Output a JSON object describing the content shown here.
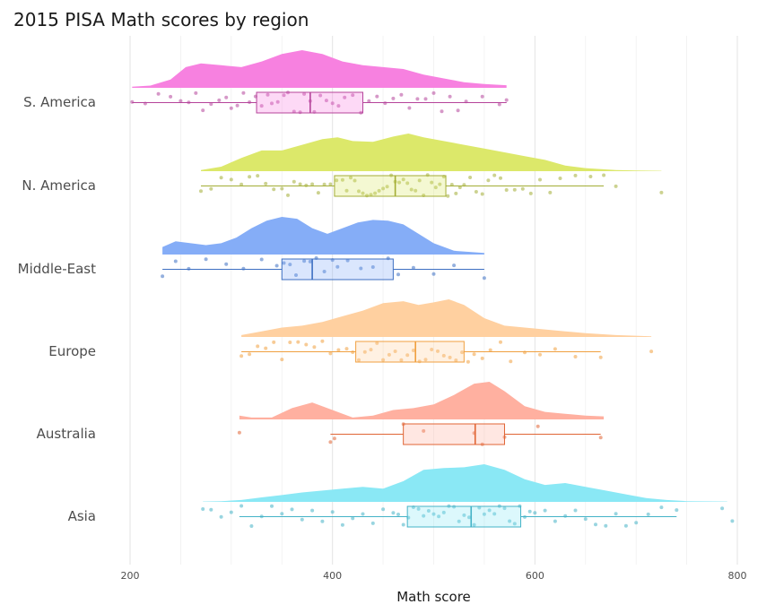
{
  "chart_data": {
    "type": "raincloud",
    "title": "2015 PISA Math scores by region",
    "xlabel": "Math score",
    "ylabel": "",
    "xlim": [
      200,
      800
    ],
    "x_ticks": [
      200,
      400,
      600,
      800
    ],
    "x_tick_labels": [
      "200",
      "400",
      "600",
      "800"
    ],
    "grid": true,
    "legend": "none",
    "categories": [
      "S. America",
      "N. America",
      "Middle-East",
      "Europe",
      "Australia",
      "Asia"
    ],
    "series": [
      {
        "category": "S. America",
        "color": "#f781e0",
        "dark_color": "#b5449a",
        "box": {
          "min": 202,
          "q1": 325,
          "median": 378,
          "q3": 430,
          "max": 572
        },
        "density": [
          [
            202,
            0.03
          ],
          [
            220,
            0.06
          ],
          [
            240,
            0.22
          ],
          [
            255,
            0.55
          ],
          [
            270,
            0.65
          ],
          [
            290,
            0.6
          ],
          [
            310,
            0.55
          ],
          [
            330,
            0.7
          ],
          [
            350,
            0.9
          ],
          [
            370,
            1.0
          ],
          [
            390,
            0.9
          ],
          [
            410,
            0.7
          ],
          [
            430,
            0.6
          ],
          [
            450,
            0.55
          ],
          [
            470,
            0.5
          ],
          [
            490,
            0.35
          ],
          [
            510,
            0.25
          ],
          [
            530,
            0.15
          ],
          [
            550,
            0.1
          ],
          [
            572,
            0.07
          ]
        ],
        "points": [
          202,
          215,
          228,
          240,
          250,
          258,
          265,
          272,
          280,
          288,
          295,
          300,
          306,
          312,
          318,
          324,
          330,
          336,
          340,
          346,
          352,
          356,
          362,
          368,
          372,
          378,
          382,
          388,
          394,
          400,
          406,
          412,
          420,
          428,
          436,
          444,
          452,
          460,
          468,
          476,
          484,
          492,
          500,
          508,
          516,
          524,
          532,
          548,
          565,
          572
        ]
      },
      {
        "category": "N. America",
        "color": "#dce86a",
        "dark_color": "#a3ad35",
        "box": {
          "min": 270,
          "q1": 402,
          "median": 462,
          "q3": 512,
          "max": 668
        },
        "density": [
          [
            270,
            0.03
          ],
          [
            290,
            0.12
          ],
          [
            310,
            0.35
          ],
          [
            330,
            0.55
          ],
          [
            350,
            0.55
          ],
          [
            370,
            0.7
          ],
          [
            390,
            0.85
          ],
          [
            405,
            0.9
          ],
          [
            420,
            0.8
          ],
          [
            440,
            0.78
          ],
          [
            460,
            0.92
          ],
          [
            475,
            1.0
          ],
          [
            490,
            0.9
          ],
          [
            510,
            0.8
          ],
          [
            530,
            0.7
          ],
          [
            550,
            0.6
          ],
          [
            570,
            0.5
          ],
          [
            590,
            0.4
          ],
          [
            610,
            0.3
          ],
          [
            630,
            0.15
          ],
          [
            650,
            0.08
          ],
          [
            680,
            0.03
          ],
          [
            700,
            0.02
          ],
          [
            725,
            0.01
          ]
        ],
        "points": [
          270,
          280,
          290,
          300,
          310,
          318,
          326,
          334,
          342,
          350,
          356,
          362,
          368,
          374,
          380,
          386,
          392,
          398,
          404,
          410,
          414,
          418,
          422,
          426,
          430,
          434,
          438,
          442,
          446,
          450,
          454,
          458,
          462,
          466,
          470,
          474,
          478,
          482,
          486,
          490,
          494,
          498,
          502,
          506,
          510,
          514,
          518,
          522,
          526,
          530,
          536,
          542,
          548,
          554,
          560,
          566,
          572,
          580,
          588,
          596,
          605,
          615,
          625,
          640,
          655,
          668,
          680,
          725
        ]
      },
      {
        "category": "Middle-East",
        "color": "#85adf7",
        "dark_color": "#3d6fc2",
        "box": {
          "min": 232,
          "q1": 350,
          "median": 380,
          "q3": 460,
          "max": 550
        },
        "density": [
          [
            232,
            0.2
          ],
          [
            245,
            0.35
          ],
          [
            260,
            0.3
          ],
          [
            275,
            0.25
          ],
          [
            290,
            0.3
          ],
          [
            305,
            0.45
          ],
          [
            320,
            0.7
          ],
          [
            335,
            0.9
          ],
          [
            350,
            1.0
          ],
          [
            365,
            0.95
          ],
          [
            380,
            0.7
          ],
          [
            395,
            0.55
          ],
          [
            410,
            0.7
          ],
          [
            425,
            0.85
          ],
          [
            440,
            0.92
          ],
          [
            455,
            0.9
          ],
          [
            470,
            0.8
          ],
          [
            485,
            0.55
          ],
          [
            500,
            0.3
          ],
          [
            520,
            0.1
          ],
          [
            550,
            0.04
          ]
        ],
        "points": [
          232,
          245,
          258,
          275,
          295,
          312,
          330,
          345,
          352,
          358,
          364,
          372,
          378,
          384,
          392,
          400,
          405,
          415,
          428,
          440,
          455,
          465,
          480,
          500,
          520,
          550
        ]
      },
      {
        "category": "Europe",
        "color": "#ffd0a0",
        "dark_color": "#f0a040",
        "box": {
          "min": 310,
          "q1": 423,
          "median": 482,
          "q3": 530,
          "max": 665
        },
        "density": [
          [
            310,
            0.05
          ],
          [
            330,
            0.15
          ],
          [
            350,
            0.25
          ],
          [
            370,
            0.3
          ],
          [
            390,
            0.4
          ],
          [
            410,
            0.55
          ],
          [
            430,
            0.7
          ],
          [
            450,
            0.9
          ],
          [
            470,
            0.95
          ],
          [
            485,
            0.85
          ],
          [
            500,
            0.92
          ],
          [
            515,
            1.0
          ],
          [
            530,
            0.85
          ],
          [
            550,
            0.5
          ],
          [
            570,
            0.3
          ],
          [
            590,
            0.25
          ],
          [
            610,
            0.2
          ],
          [
            630,
            0.15
          ],
          [
            650,
            0.1
          ],
          [
            680,
            0.05
          ],
          [
            715,
            0.02
          ]
        ],
        "points": [
          310,
          318,
          326,
          334,
          342,
          350,
          358,
          366,
          374,
          382,
          390,
          398,
          406,
          414,
          420,
          426,
          432,
          438,
          444,
          450,
          456,
          462,
          468,
          474,
          480,
          486,
          492,
          498,
          504,
          510,
          516,
          522,
          528,
          534,
          540,
          548,
          556,
          566,
          576,
          590,
          605,
          620,
          640,
          665,
          715
        ]
      },
      {
        "category": "Australia",
        "color": "#ffb0a0",
        "dark_color": "#e06535",
        "box": {
          "min": 398,
          "q1": 470,
          "median": 541,
          "q3": 570,
          "max": 665
        },
        "density": [
          [
            308,
            0.1
          ],
          [
            320,
            0.05
          ],
          [
            340,
            0.05
          ],
          [
            360,
            0.3
          ],
          [
            380,
            0.45
          ],
          [
            400,
            0.25
          ],
          [
            420,
            0.05
          ],
          [
            440,
            0.1
          ],
          [
            460,
            0.25
          ],
          [
            480,
            0.3
          ],
          [
            500,
            0.4
          ],
          [
            520,
            0.65
          ],
          [
            540,
            0.95
          ],
          [
            555,
            1.0
          ],
          [
            570,
            0.75
          ],
          [
            590,
            0.35
          ],
          [
            610,
            0.2
          ],
          [
            630,
            0.15
          ],
          [
            650,
            0.1
          ],
          [
            668,
            0.08
          ]
        ],
        "points": [
          308,
          398,
          402,
          470,
          490,
          540,
          548,
          570,
          603,
          665
        ]
      },
      {
        "category": "Asia",
        "color": "#8ae8f5",
        "dark_color": "#45b3c7",
        "box": {
          "min": 308,
          "q1": 474,
          "median": 537,
          "q3": 586,
          "max": 740
        },
        "density": [
          [
            272,
            0.01
          ],
          [
            290,
            0.02
          ],
          [
            310,
            0.05
          ],
          [
            330,
            0.12
          ],
          [
            350,
            0.18
          ],
          [
            370,
            0.25
          ],
          [
            390,
            0.3
          ],
          [
            410,
            0.35
          ],
          [
            430,
            0.4
          ],
          [
            450,
            0.35
          ],
          [
            470,
            0.55
          ],
          [
            490,
            0.85
          ],
          [
            510,
            0.9
          ],
          [
            530,
            0.92
          ],
          [
            550,
            1.0
          ],
          [
            570,
            0.85
          ],
          [
            590,
            0.6
          ],
          [
            610,
            0.45
          ],
          [
            630,
            0.5
          ],
          [
            650,
            0.4
          ],
          [
            670,
            0.3
          ],
          [
            690,
            0.2
          ],
          [
            710,
            0.1
          ],
          [
            730,
            0.05
          ],
          [
            750,
            0.02
          ],
          [
            790,
            0.01
          ]
        ],
        "points": [
          272,
          280,
          290,
          300,
          310,
          320,
          330,
          340,
          350,
          360,
          370,
          380,
          390,
          400,
          410,
          420,
          430,
          440,
          450,
          460,
          465,
          470,
          475,
          480,
          485,
          490,
          495,
          500,
          505,
          510,
          515,
          520,
          525,
          530,
          535,
          540,
          545,
          550,
          555,
          560,
          565,
          570,
          575,
          580,
          585,
          590,
          595,
          600,
          610,
          620,
          630,
          640,
          650,
          660,
          670,
          680,
          690,
          700,
          712,
          725,
          740,
          785,
          795
        ]
      }
    ]
  }
}
